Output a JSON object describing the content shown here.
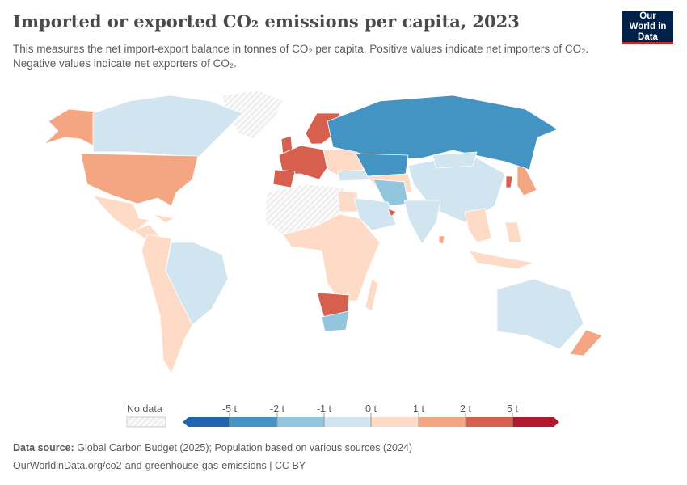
{
  "header": {
    "title": "Imported or exported CO₂ emissions per capita, 2023",
    "subtitle": "This measures the net import-export balance in tonnes of CO₂ per capita. Positive values indicate net importers of CO₂. Negative values indicate net exporters of CO₂.",
    "logo_text": "Our World in Data"
  },
  "legend": {
    "no_data_label": "No data",
    "ticks": [
      "-5 t",
      "-2 t",
      "-1 t",
      "0 t",
      "1 t",
      "2 t",
      "5 t"
    ],
    "colors": [
      "#2166ac",
      "#4393c3",
      "#92c5de",
      "#d1e5f0",
      "#fddbc7",
      "#f4a582",
      "#d6604d",
      "#b2182b"
    ],
    "no_data_color": "#e0e0e0"
  },
  "footer": {
    "source_label": "Data source:",
    "source_text": "Global Carbon Budget (2025); Population based on various sources (2024)",
    "url_text": "OurWorldinData.org/co2-and-greenhouse-gas-emissions | CC BY"
  }
}
